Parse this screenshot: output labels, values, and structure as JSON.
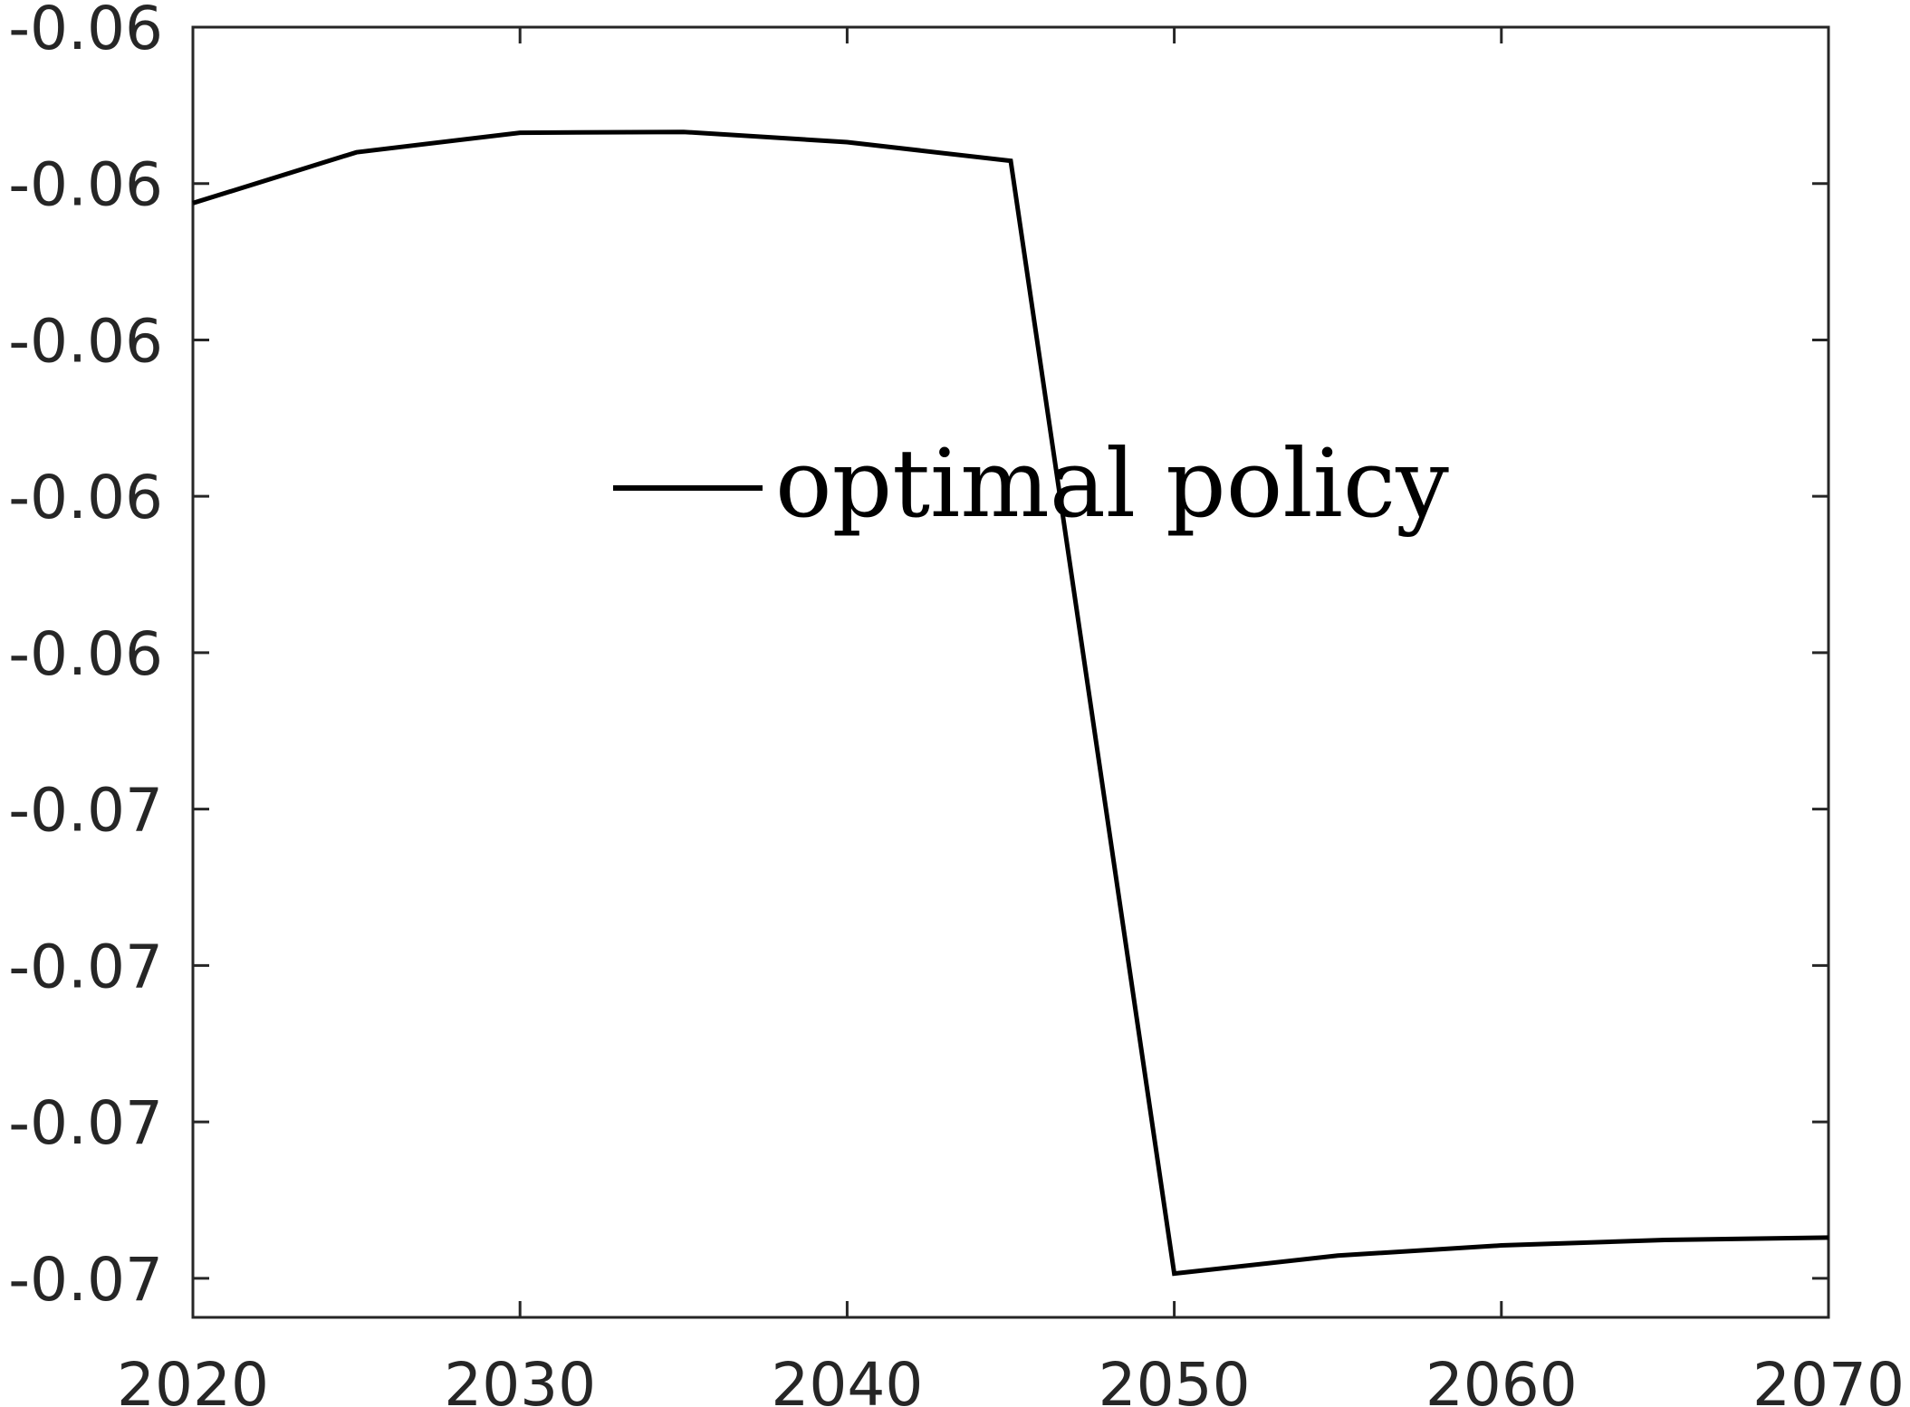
{
  "chart_data": {
    "type": "line",
    "title": "",
    "xlabel": "",
    "ylabel": "",
    "x": [
      2020,
      2025,
      2030,
      2035,
      2040,
      2045,
      2050,
      2055,
      2060,
      2065,
      2070
    ],
    "series": [
      {
        "name": "optimal policy",
        "values": [
          -0.05725,
          -0.0566,
          -0.05635,
          -0.05634,
          -0.05647,
          -0.05671,
          -0.07094,
          -0.07071,
          -0.07058,
          -0.07051,
          -0.07048
        ]
      }
    ],
    "xlim": [
      2020,
      2070
    ],
    "ylim": [
      -0.0715,
      -0.055
    ],
    "xticks": [
      2020,
      2030,
      2040,
      2050,
      2060,
      2070
    ],
    "xtick_labels": [
      "2020",
      "2030",
      "2040",
      "2050",
      "2060",
      "2070"
    ],
    "yticks": [
      -0.055,
      -0.057,
      -0.059,
      -0.061,
      -0.063,
      -0.065,
      -0.067,
      -0.069,
      -0.071
    ],
    "ytick_labels": [
      "-0.06",
      "-0.06",
      "-0.06",
      "-0.06",
      "-0.06",
      "-0.07",
      "-0.07",
      "-0.07",
      "-0.07"
    ],
    "grid": false,
    "legend_position": "center",
    "line_color": "#000000",
    "axis_color": "#262626"
  }
}
